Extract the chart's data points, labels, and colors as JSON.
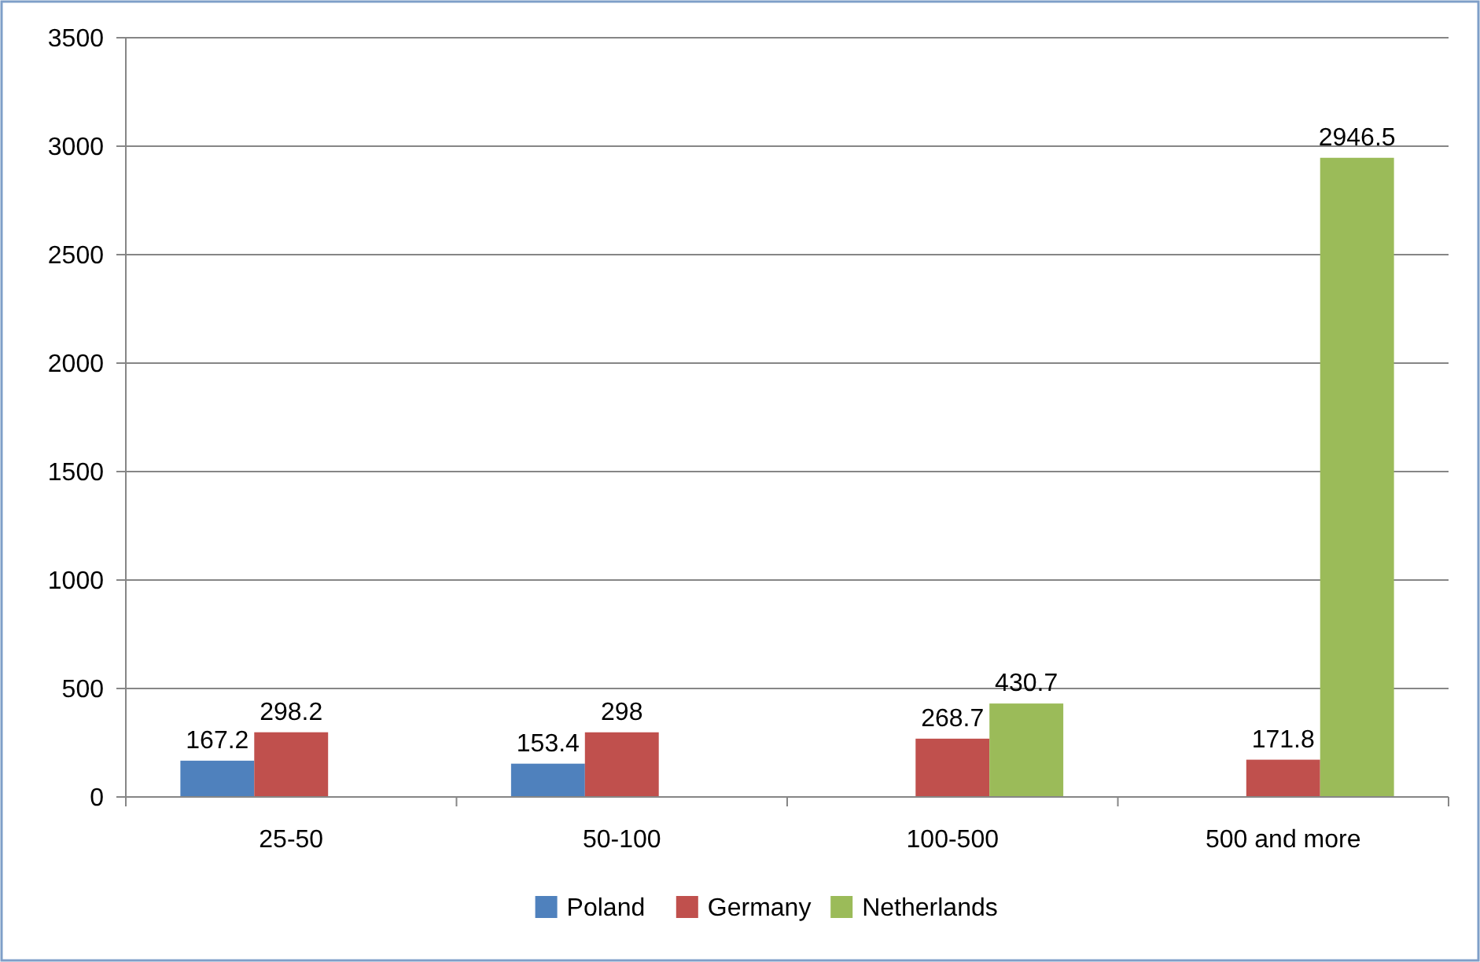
{
  "chart_data": {
    "type": "bar",
    "categories": [
      "25-50",
      "50-100",
      "100-500",
      "500 and more"
    ],
    "series": [
      {
        "name": "Poland",
        "color": "#4f81bd",
        "values": [
          167.2,
          153.4,
          null,
          null
        ]
      },
      {
        "name": "Germany",
        "color": "#c0504d",
        "values": [
          298.2,
          298,
          268.7,
          171.8
        ]
      },
      {
        "name": "Netherlands",
        "color": "#9bbb59",
        "values": [
          null,
          null,
          430.7,
          2946.5
        ]
      }
    ],
    "ylim": [
      0,
      3500
    ],
    "yticks": [
      0,
      500,
      1000,
      1500,
      2000,
      2500,
      3000,
      3500
    ],
    "grid": "y",
    "legend": "bottom",
    "data_labels": true
  }
}
